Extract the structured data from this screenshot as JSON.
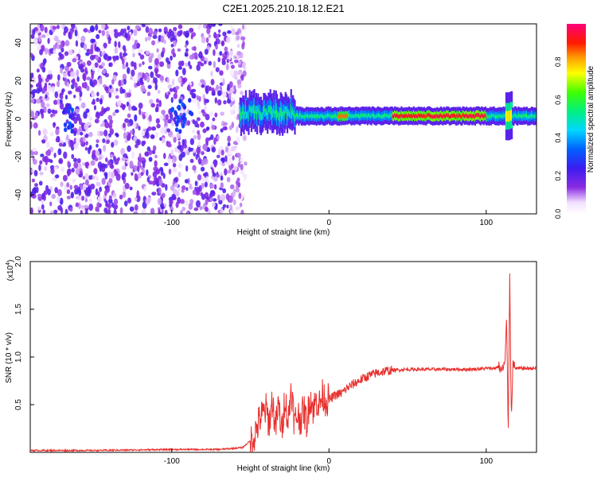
{
  "title": "C2E1.2025.210.18.12.E21",
  "chart_data": [
    {
      "type": "heatmap",
      "xlabel": "Height of straight line (km)",
      "ylabel": "Frequency (Hz)",
      "xlim": [
        -190,
        132
      ],
      "ylim": [
        -50,
        50
      ],
      "xticks": [
        -100,
        0,
        100
      ],
      "yticks": [
        -40,
        -20,
        0,
        20,
        40
      ],
      "colorbar": {
        "label": "Normalized spectral amplitude",
        "range": [
          0,
          1
        ],
        "ticks": [
          "0.0",
          "0.2",
          "0.4",
          "0.6",
          "0.8"
        ],
        "colormap": "rainbow (white -> violet -> blue -> cyan -> green -> yellow -> red -> magenta)"
      },
      "regions": [
        {
          "x": [
            -190,
            -57
          ],
          "description": "broadband noise across all frequencies, amplitude ~0.1-0.25, hot spots near x=-165 and x=-95 around 0 Hz"
        },
        {
          "x": [
            -57,
            -22
          ],
          "f_center": 3,
          "f_halfwidth": 5,
          "amplitude": 0.5
        },
        {
          "x": [
            -22,
            130
          ],
          "f_center": 1.5,
          "f_halfwidth": 3,
          "amplitude": 0.55
        },
        {
          "x": [
            40,
            100
          ],
          "f_center": 1.5,
          "amplitude": 0.95,
          "description": "peak amplitude band"
        },
        {
          "x": [
            112,
            116
          ],
          "f_center": 1.5,
          "f_halfwidth": 8,
          "amplitude": 0.8,
          "description": "spike"
        }
      ]
    },
    {
      "type": "line",
      "xlabel": "Height of straight line (km)",
      "ylabel": "SNR (10 * v/v)",
      "yscale_label": "(x10",
      "yscale_exp": "4",
      "xlim": [
        -190,
        132
      ],
      "ylim": [
        0,
        2.0
      ],
      "xticks": [
        -100,
        0,
        100
      ],
      "yticks": [
        "0.5",
        "1.0",
        "1.5",
        "2.0"
      ],
      "color": "#e8302d",
      "series": [
        {
          "x": [
            -190,
            -150,
            -100,
            -70,
            -55,
            -48,
            -44,
            -40,
            -38,
            -36,
            -34,
            -32,
            -30,
            -28,
            -26,
            -24,
            -22,
            -20,
            -18,
            -16,
            -14,
            -12,
            -10,
            -8,
            -6,
            -4,
            -2,
            0,
            4,
            8,
            12,
            16,
            20,
            25,
            30,
            35,
            40,
            50,
            60,
            70,
            80,
            90,
            100,
            105,
            108,
            110,
            112,
            113,
            114,
            115,
            116,
            117,
            118,
            120,
            125,
            132
          ],
          "y": [
            0.02,
            0.02,
            0.03,
            0.03,
            0.05,
            0.15,
            0.35,
            0.45,
            0.3,
            0.55,
            0.25,
            0.5,
            0.2,
            0.6,
            0.3,
            0.7,
            0.3,
            0.4,
            0.35,
            0.45,
            0.3,
            0.6,
            0.45,
            0.55,
            0.5,
            0.6,
            0.55,
            0.55,
            0.6,
            0.62,
            0.68,
            0.72,
            0.76,
            0.8,
            0.83,
            0.85,
            0.86,
            0.87,
            0.87,
            0.87,
            0.87,
            0.87,
            0.88,
            0.88,
            0.9,
            0.85,
            0.95,
            1.4,
            0.2,
            1.9,
            0.3,
            1.0,
            0.88,
            0.88,
            0.88,
            0.88
          ]
        }
      ]
    }
  ]
}
